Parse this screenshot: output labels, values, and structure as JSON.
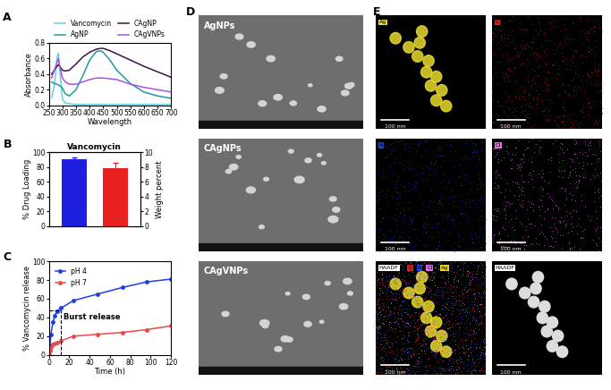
{
  "chart_data": [
    {
      "panel": "A",
      "type": "line",
      "xlabel": "Wavelength",
      "ylabel": "Absorbance",
      "x": [
        260,
        270,
        280,
        285,
        290,
        300,
        310,
        325,
        350,
        375,
        400,
        425,
        440,
        450,
        475,
        500,
        550,
        600,
        650,
        700
      ],
      "series": [
        {
          "name": "Vancomycin",
          "color": "#5fd3e8",
          "values": [
            0.1,
            0.25,
            0.62,
            0.67,
            0.45,
            0.08,
            0.03,
            0.02,
            0.01,
            0.01,
            0.01,
            0.01,
            0.01,
            0.01,
            0.01,
            0.01,
            0.01,
            0.01,
            0.01,
            0.01
          ]
        },
        {
          "name": "AgNP",
          "color": "#1f9a9a",
          "values": [
            0.3,
            0.28,
            0.27,
            0.26,
            0.25,
            0.22,
            0.15,
            0.12,
            0.2,
            0.38,
            0.58,
            0.69,
            0.7,
            0.68,
            0.58,
            0.45,
            0.28,
            0.17,
            0.12,
            0.09
          ]
        },
        {
          "name": "CAgNP",
          "color": "#3b1248",
          "values": [
            0.4,
            0.45,
            0.5,
            0.52,
            0.5,
            0.45,
            0.44,
            0.45,
            0.53,
            0.62,
            0.68,
            0.72,
            0.73,
            0.73,
            0.7,
            0.66,
            0.58,
            0.5,
            0.43,
            0.36
          ]
        },
        {
          "name": "CAgVNPs",
          "color": "#a855d6",
          "values": [
            0.35,
            0.45,
            0.55,
            0.6,
            0.5,
            0.35,
            0.3,
            0.27,
            0.27,
            0.3,
            0.33,
            0.35,
            0.35,
            0.35,
            0.34,
            0.33,
            0.27,
            0.23,
            0.2,
            0.17
          ]
        }
      ],
      "xlim": [
        250,
        700
      ],
      "xticks": [
        250,
        300,
        350,
        400,
        450,
        500,
        550,
        600,
        650,
        700
      ],
      "ylim": [
        0.0,
        0.8
      ],
      "yticks": [
        0.0,
        0.2,
        0.4,
        0.6,
        0.8
      ],
      "legend": "top"
    },
    {
      "panel": "B",
      "type": "bar",
      "title": "Vancomycin",
      "ylabel": "% Drug Loading",
      "y2label": "Weight percent",
      "categories": [
        null,
        null
      ],
      "series": [
        {
          "name": "% Drug Loading",
          "color": "#1f1fe0",
          "values": [
            90,
            null
          ],
          "errors": [
            2.5,
            null
          ]
        },
        {
          "name": "Weight percent",
          "color": "#e8201f",
          "axis": "y2",
          "values": [
            null,
            7.8
          ],
          "errors": [
            null,
            0.8
          ]
        }
      ],
      "ylim": [
        0,
        100
      ],
      "yticks": [
        0,
        20,
        40,
        60,
        80,
        100
      ],
      "y2lim": [
        0,
        10
      ],
      "y2ticks": [
        0,
        2,
        4,
        6,
        8,
        10
      ],
      "tick_labels": "y"
    },
    {
      "panel": "C",
      "type": "line",
      "xlabel": "Time (h)",
      "ylabel": "% Vancomycin release",
      "x": [
        0,
        1,
        2,
        4,
        6,
        8,
        12,
        24,
        48,
        72,
        96,
        120
      ],
      "series": [
        {
          "name": "pH 4",
          "color": "#1f3fe0",
          "marker": "circle",
          "values": [
            0,
            10,
            22,
            35,
            42,
            47,
            50,
            58,
            65,
            72,
            78,
            81
          ]
        },
        {
          "name": "pH 7",
          "color": "#e84a4a",
          "marker": "circle",
          "values": [
            0,
            5,
            8,
            11,
            12,
            13,
            15,
            20,
            22,
            24,
            27,
            31
          ]
        }
      ],
      "annotations": [
        {
          "text": "Burst release",
          "x": 12,
          "y": 48
        }
      ],
      "xlim": [
        0,
        120
      ],
      "xticks": [
        0,
        20,
        40,
        60,
        80,
        100,
        120
      ],
      "ylim": [
        0,
        100
      ],
      "yticks": [
        0,
        20,
        40,
        60,
        80,
        100
      ],
      "legend": "upper left"
    }
  ],
  "sem_images": {
    "panel": "D",
    "titles": [
      "AgNPs",
      "CAgNPs",
      "CAgVNPs"
    ]
  },
  "eds_maps": {
    "panel": "E",
    "scale_bar": "100 nm",
    "maps": [
      {
        "elements": [
          "Ag"
        ],
        "colors": [
          "#e8d830"
        ]
      },
      {
        "elements": [
          "C"
        ],
        "colors": [
          "#e02020"
        ]
      },
      {
        "elements": [
          "N"
        ],
        "colors": [
          "#2040e0"
        ]
      },
      {
        "elements": [
          "Cl"
        ],
        "colors": [
          "#e070e0"
        ]
      },
      {
        "elements": [
          "HAADF",
          "C",
          "N",
          "Cl",
          "Ag"
        ],
        "colors": [
          "#ffffff",
          "#e02020",
          "#2040e0",
          "#e070e0",
          "#e8d830"
        ]
      },
      {
        "elements": [
          "HAADF"
        ],
        "colors": [
          "#ffffff"
        ]
      }
    ]
  }
}
